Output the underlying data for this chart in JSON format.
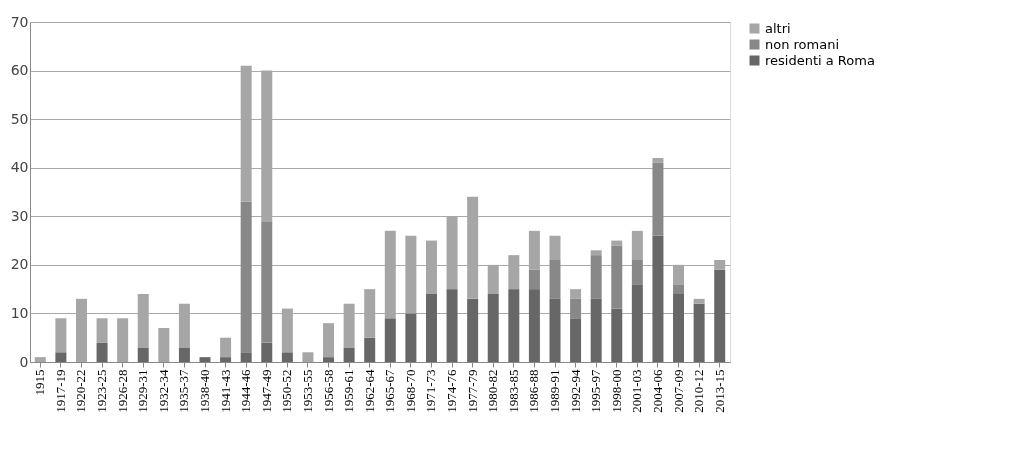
{
  "chart_data": {
    "type": "bar",
    "stacked": true,
    "categories": [
      "1915",
      "1917-19",
      "1920-22",
      "1923-25",
      "1926-28",
      "1929-31",
      "1932-34",
      "1935-37",
      "1938-40",
      "1941-43",
      "1944-46",
      "1947-49",
      "1950-52",
      "1953-55",
      "1956-58",
      "1959-61",
      "1962-64",
      "1965-67",
      "1968-70",
      "1971-73",
      "1974-76",
      "1977-79",
      "1980-82",
      "1983-85",
      "1986-88",
      "1989-91",
      "1992-94",
      "1995-97",
      "1998-00",
      "2001-03",
      "2004-06",
      "2007-09",
      "2010-12",
      "2013-15"
    ],
    "series": [
      {
        "name": "residenti a Roma",
        "color": "#676767",
        "values": [
          0,
          2,
          0,
          4,
          0,
          3,
          0,
          3,
          1,
          1,
          2,
          4,
          2,
          0,
          1,
          3,
          5,
          9,
          10,
          14,
          15,
          13,
          14,
          15,
          15,
          13,
          9,
          13,
          11,
          16,
          26,
          14,
          12,
          19
        ]
      },
      {
        "name": "non romani",
        "color": "#888888",
        "values": [
          0,
          0,
          0,
          0,
          0,
          0,
          0,
          0,
          0,
          0,
          31,
          25,
          0,
          0,
          0,
          0,
          0,
          0,
          0,
          0,
          0,
          0,
          0,
          0,
          4,
          8,
          4,
          9,
          13,
          5,
          15,
          2,
          0,
          0
        ]
      },
      {
        "name": "altri",
        "color": "#a6a6a6",
        "values": [
          1,
          7,
          13,
          5,
          9,
          11,
          7,
          9,
          0,
          4,
          28,
          31,
          9,
          2,
          7,
          9,
          10,
          18,
          16,
          11,
          15,
          21,
          6,
          7,
          8,
          5,
          2,
          1,
          1,
          6,
          1,
          4,
          1,
          2
        ]
      }
    ],
    "ylim": [
      0,
      70
    ],
    "yticks": [
      0,
      10,
      20,
      30,
      40,
      50,
      60,
      70
    ],
    "grid": "y",
    "legend": "right"
  }
}
